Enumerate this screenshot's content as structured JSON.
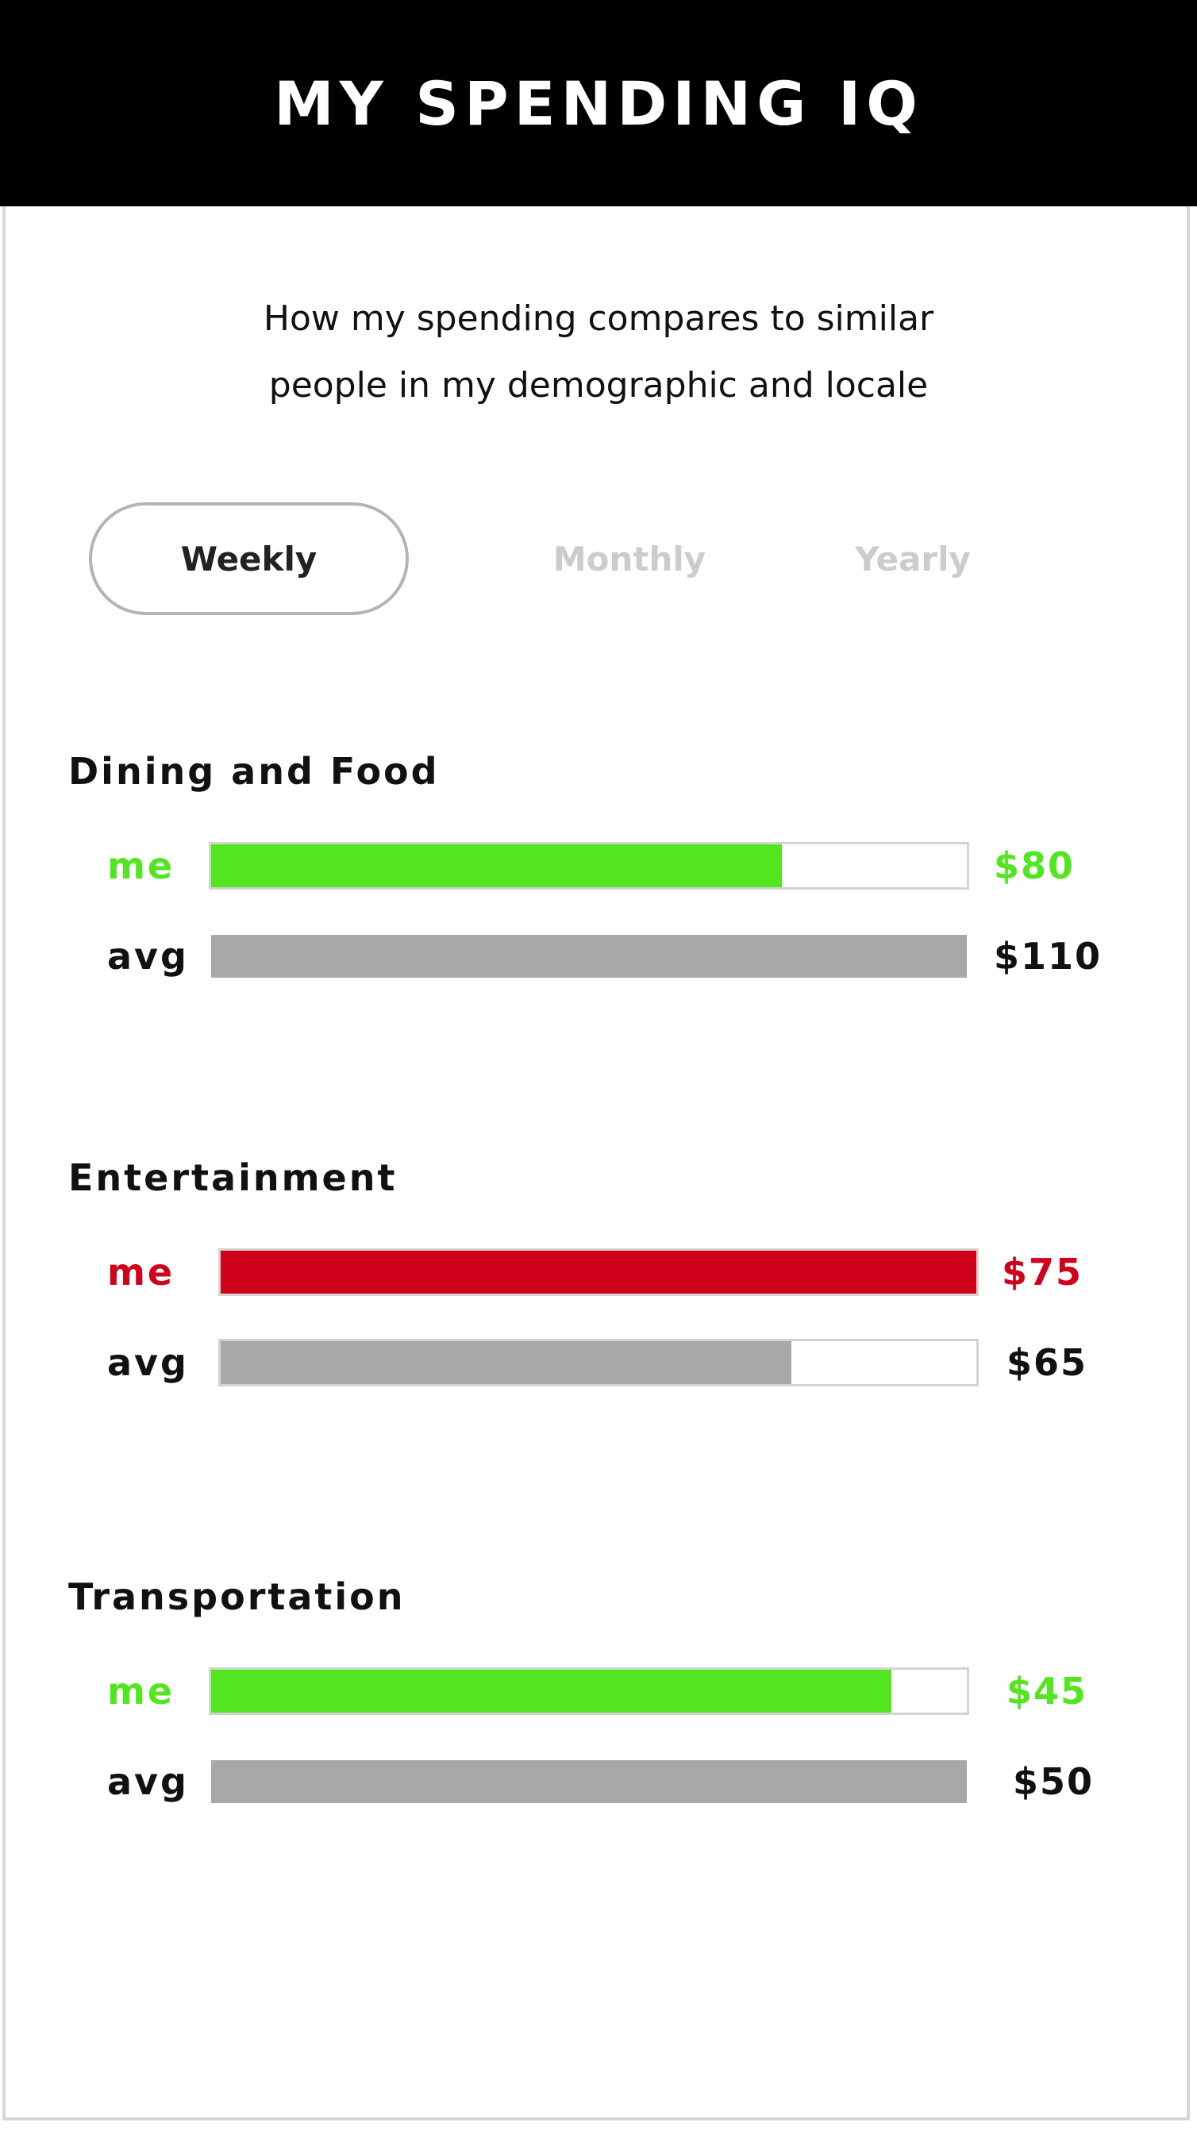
{
  "header": {
    "title": "MY SPENDING IQ"
  },
  "subtitle": {
    "line1": "How my spending compares to similar",
    "line2": "people in my demographic and locale"
  },
  "tabs": [
    {
      "label": "Weekly",
      "selected": true
    },
    {
      "label": "Monthly",
      "selected": false
    },
    {
      "label": "Yearly",
      "selected": false
    }
  ],
  "colors": {
    "under_average": "#52e620",
    "over_average": "#d0021b",
    "average": "#a8a8a8",
    "header_bg": "#000000",
    "tab_inactive": "#cfcbcb"
  },
  "categories": [
    {
      "title": "Dining and Food",
      "me": {
        "label": "me",
        "value": "$80",
        "amount": 80,
        "fill_fraction": 0.755,
        "status": "under_average"
      },
      "avg": {
        "label": "avg",
        "value": "$110",
        "amount": 110,
        "fill_fraction": 1.0
      }
    },
    {
      "title": "Entertainment",
      "me": {
        "label": "me",
        "value": "$75",
        "amount": 75,
        "fill_fraction": 1.0,
        "status": "over_average"
      },
      "avg": {
        "label": "avg",
        "value": "$65",
        "amount": 65,
        "fill_fraction": 0.755
      }
    },
    {
      "title": "Transportation",
      "me": {
        "label": "me",
        "value": "$45",
        "amount": 45,
        "fill_fraction": 0.9,
        "status": "under_average"
      },
      "avg": {
        "label": "avg",
        "value": "$50",
        "amount": 50,
        "fill_fraction": 1.0
      }
    }
  ]
}
